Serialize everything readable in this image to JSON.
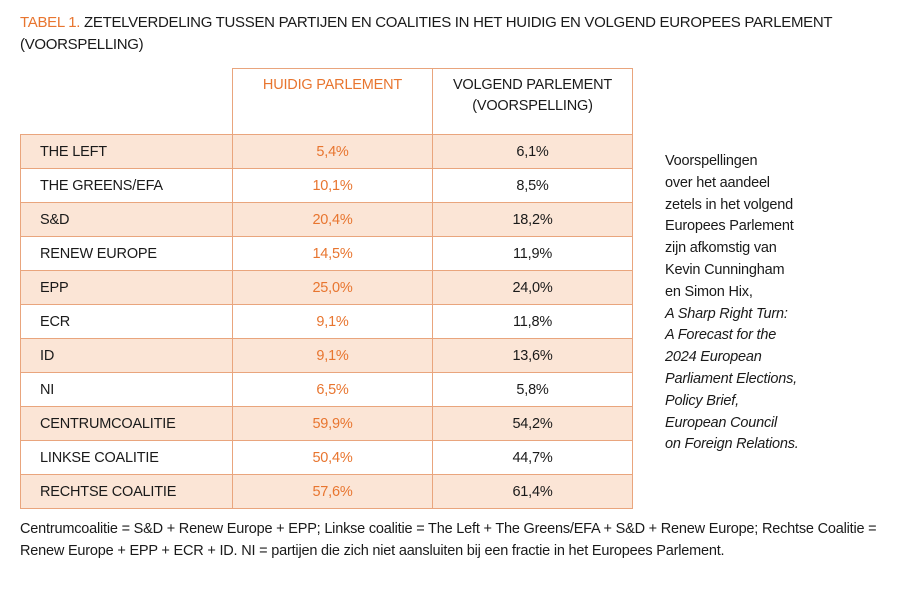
{
  "title": {
    "label": "TABEL 1.",
    "text": "ZETELVERDELING TUSSEN PARTIJEN EN COALITIES IN HET HUIDIG EN VOLGEND EUROPEES PARLEMENT (VOORSPELLING)"
  },
  "table": {
    "header": [
      "HUIDIG PARLEMENT",
      "VOLGEND PARLEMENT (VOORSPELLING)"
    ],
    "rows": [
      [
        "THE LEFT",
        "5,4%",
        "6,1%"
      ],
      [
        "THE GREENS/EFA",
        "10,1%",
        "8,5%"
      ],
      [
        "S&D",
        "20,4%",
        "18,2%"
      ],
      [
        "RENEW EUROPE",
        "14,5%",
        "11,9%"
      ],
      [
        "EPP",
        "25,0%",
        "24,0%"
      ],
      [
        "ECR",
        "9,1%",
        "11,8%"
      ],
      [
        "ID",
        "9,1%",
        "13,6%"
      ],
      [
        "NI",
        "6,5%",
        "5,8%"
      ],
      [
        "CENTRUMCOALITIE",
        "59,9%",
        "54,2%"
      ],
      [
        "LINKSE COALITIE",
        "50,4%",
        "44,7%"
      ],
      [
        "RECHTSE COALITIE",
        "57,6%",
        "61,4%"
      ]
    ]
  },
  "note": {
    "text_lines": [
      "Voorspellingen",
      "over het aandeel",
      "zetels in het volgend",
      "Europees Parlement",
      "zijn afkomstig van",
      "Kevin Cunningham",
      "en Simon Hix,"
    ],
    "source_lines": [
      "A Sharp Right Turn:",
      "A Forecast for the",
      "2024 European",
      "Parliament Elections,",
      "Policy Brief,",
      "European Council",
      "on Foreign Relations."
    ]
  },
  "footnote": "Centrumcoalitie = S&D + Renew Europe + EPP; Linkse coalitie = The Left + The Greens/EFA + S&D + Renew Europe; Rechtse Coalitie = Renew Europe + EPP + ECR + ID. NI = partijen die zich niet aansluiten bij een fractie in het Europees Parlement."
}
